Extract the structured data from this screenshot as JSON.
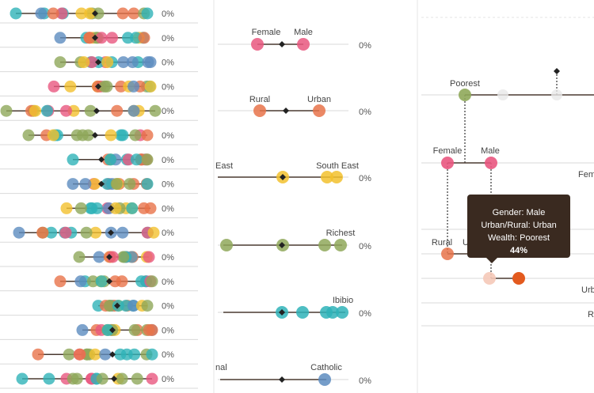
{
  "colors": {
    "olive": "#8fa85a",
    "yellow": "#f2c12e",
    "teal": "#2fb3b8",
    "orange": "#e8734a",
    "pink": "#e9577f",
    "blue": "#5d8cbf",
    "redorange": "#e35a1e",
    "line": "#4a3a30",
    "diamond": "#222222",
    "grid": "#d9d9d9"
  },
  "chart_data": [
    {
      "type": "scatter",
      "name_hint": "left dot-range panel",
      "xlim": [
        0,
        100
      ],
      "rows": [
        {
          "pct_label": "0%",
          "mid": 60,
          "range": [
            10,
            93
          ]
        },
        {
          "pct_label": "0%",
          "mid": 60,
          "range": [
            38,
            91
          ]
        },
        {
          "pct_label": "0%",
          "mid": 62,
          "range": [
            38,
            95
          ]
        },
        {
          "pct_label": "0%",
          "mid": 62,
          "range": [
            34,
            95
          ]
        },
        {
          "pct_label": "0%",
          "mid": 61,
          "range": [
            4,
            98
          ]
        },
        {
          "pct_label": "0%",
          "mid": 60,
          "range": [
            18,
            93
          ]
        },
        {
          "pct_label": "0%",
          "mid": 64,
          "range": [
            46,
            93
          ]
        },
        {
          "pct_label": "0%",
          "mid": 64,
          "range": [
            46,
            93
          ]
        },
        {
          "pct_label": "0%",
          "mid": 70,
          "range": [
            42,
            95
          ]
        },
        {
          "pct_label": "0%",
          "mid": 70,
          "range": [
            12,
            97
          ]
        },
        {
          "pct_label": "0%",
          "mid": 69,
          "range": [
            50,
            94
          ]
        },
        {
          "pct_label": "0%",
          "mid": 69,
          "range": [
            38,
            96
          ]
        },
        {
          "pct_label": "0%",
          "mid": 74,
          "range": [
            62,
            93
          ]
        },
        {
          "pct_label": "0%",
          "mid": 71,
          "range": [
            52,
            96
          ]
        },
        {
          "pct_label": "0%",
          "mid": 71,
          "range": [
            24,
            96
          ]
        },
        {
          "pct_label": "0%",
          "mid": 72,
          "range": [
            14,
            96
          ]
        }
      ]
    },
    {
      "type": "scatter",
      "name_hint": "middle comparison panel",
      "rows": [
        {
          "labels": [
            "Female",
            "Male"
          ],
          "pct_label": "0%"
        },
        {
          "labels": [
            "Rural",
            "Urban"
          ],
          "pct_label": "0%"
        },
        {
          "labels": [
            "East",
            "South East"
          ],
          "pct_label": "0%"
        },
        {
          "labels": [
            "Richest"
          ],
          "pct_label": "0%"
        },
        {
          "labels": [
            "Ibibio"
          ],
          "pct_label": "0%"
        },
        {
          "labels": [
            "...nal",
            "Catholic"
          ],
          "pct_label": "0%"
        }
      ]
    },
    {
      "type": "scatter",
      "name_hint": "right decomposition panel",
      "labels": [
        "Poorest",
        "Female",
        "Male",
        "Rural",
        "U",
        "Fem",
        "Urb",
        "R"
      ]
    }
  ],
  "tooltip": {
    "gender": "Gender: Male",
    "urban": "Urban/Rural: Urban",
    "wealth": "Wealth: Poorest",
    "value": "44%"
  },
  "mid_labels": {
    "female": "Female",
    "male": "Male",
    "rural": "Rural",
    "urban": "Urban",
    "east": "East",
    "south_east": "South East",
    "richest": "Richest",
    "ibibio": "Ibibio",
    "religion_left": "nal",
    "catholic": "Catholic",
    "pct": "0%"
  },
  "right_labels": {
    "poorest": "Poorest",
    "female": "Female",
    "male": "Male",
    "rural": "Rural",
    "u": "U",
    "fem": "Fem",
    "urb": "Urb",
    "r": "R"
  }
}
